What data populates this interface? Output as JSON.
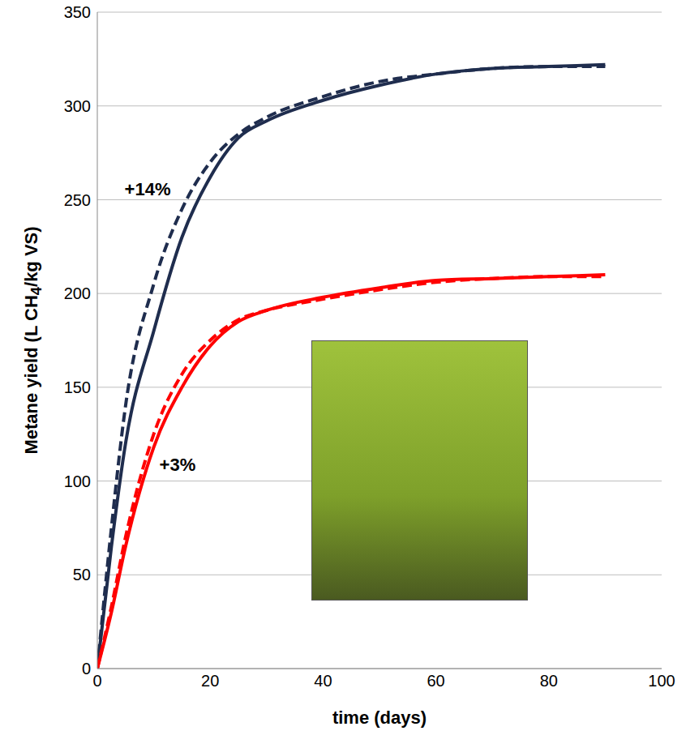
{
  "chart_data": {
    "type": "line",
    "x_label": "time (days)",
    "y_label": "Metane yield (L CH4/kg VS)",
    "x": [
      0,
      2.5,
      5,
      10,
      15,
      20,
      25,
      30,
      40,
      50,
      60,
      70,
      80,
      90
    ],
    "series": [
      {
        "color": "#1f2d4e",
        "line_style": "solid",
        "values": [
          0,
          65,
          120,
          180,
          230,
          262,
          283,
          292,
          303,
          311,
          317,
          320,
          321,
          322
        ]
      },
      {
        "color": "#1f2d4e",
        "line_style": "dashed",
        "values": [
          0,
          75,
          140,
          205,
          245,
          270,
          285,
          294,
          305,
          313,
          317,
          320,
          321,
          321
        ]
      },
      {
        "color": "#ff0000",
        "line_style": "solid",
        "values": [
          0,
          30,
          65,
          118,
          150,
          172,
          185,
          191,
          198,
          203,
          207,
          208,
          209,
          210
        ]
      },
      {
        "color": "#ff0000",
        "line_style": "dashed",
        "values": [
          0,
          33,
          70,
          125,
          157,
          175,
          186,
          191,
          197,
          202,
          206,
          208,
          209,
          209
        ]
      }
    ],
    "annotations": [
      {
        "text": "+14%",
        "x": 13,
        "y": 255
      },
      {
        "text": "+3%",
        "x": 11,
        "y": 108
      }
    ],
    "xlim": [
      0,
      100
    ],
    "xticks": [
      0,
      20,
      40,
      60,
      80,
      100
    ],
    "ylim": [
      0,
      350
    ],
    "yticks": [
      0,
      50,
      100,
      150,
      200,
      250,
      300,
      350
    ],
    "grid": true
  }
}
